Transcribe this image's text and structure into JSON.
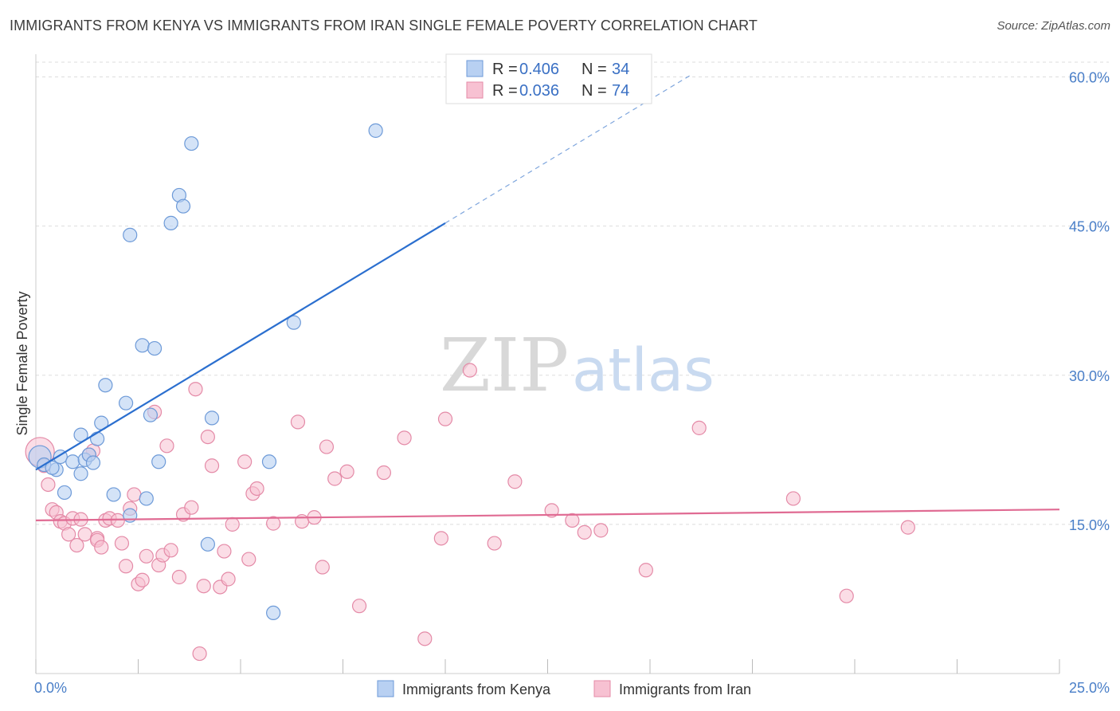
{
  "title": "IMMIGRANTS FROM KENYA VS IMMIGRANTS FROM IRAN SINGLE FEMALE POVERTY CORRELATION CHART",
  "source": "Source: ZipAtlas.com",
  "watermark": {
    "zip": "ZIP",
    "atlas": "atlas"
  },
  "legend": {
    "r_label": "R = ",
    "n_label": "N = ",
    "entries": [
      {
        "r": "0.406",
        "n": "34"
      },
      {
        "r": "0.036",
        "n": "74"
      }
    ]
  },
  "colors": {
    "kenya_fill": "#b8d0f2",
    "kenya_stroke": "#6d9ad8",
    "kenya_line": "#2b6fcf",
    "iran_fill": "#f7c1d2",
    "iran_stroke": "#e48aa7",
    "iran_line": "#e06b93",
    "axis_text": "#4a7fc8",
    "grid": "#dddddd"
  },
  "chart_data": {
    "type": "scatter",
    "title": "IMMIGRANTS FROM KENYA VS IMMIGRANTS FROM IRAN SINGLE FEMALE POVERTY CORRELATION CHART",
    "xlabel": "",
    "ylabel": "Single Female Poverty",
    "xlim": [
      0,
      25
    ],
    "ylim": [
      0,
      60
    ],
    "x_tick_labels": [
      "0.0%",
      "25.0%"
    ],
    "y_ticks": [
      15,
      30,
      45,
      60
    ],
    "y_tick_labels": [
      "15.0%",
      "30.0%",
      "45.0%",
      "60.0%"
    ],
    "grid": true,
    "legend_position": "top-center",
    "series": [
      {
        "name": "Immigrants from Kenya",
        "points": [
          [
            0.1,
            21.8
          ],
          [
            0.2,
            21.0
          ],
          [
            0.5,
            20.5
          ],
          [
            0.6,
            21.8
          ],
          [
            0.7,
            18.2
          ],
          [
            0.9,
            21.3
          ],
          [
            1.1,
            20.1
          ],
          [
            1.1,
            24.0
          ],
          [
            1.2,
            21.5
          ],
          [
            1.3,
            22.0
          ],
          [
            1.5,
            23.6
          ],
          [
            1.6,
            25.2
          ],
          [
            1.7,
            29.0
          ],
          [
            1.9,
            18.0
          ],
          [
            2.2,
            27.2
          ],
          [
            2.3,
            15.9
          ],
          [
            2.3,
            44.1
          ],
          [
            2.6,
            33.0
          ],
          [
            2.7,
            17.6
          ],
          [
            2.8,
            26.0
          ],
          [
            2.9,
            32.7
          ],
          [
            3.0,
            21.3
          ],
          [
            3.3,
            45.3
          ],
          [
            3.5,
            48.1
          ],
          [
            3.6,
            47.0
          ],
          [
            3.8,
            53.3
          ],
          [
            4.2,
            13.0
          ],
          [
            4.3,
            25.7
          ],
          [
            5.7,
            21.3
          ],
          [
            5.8,
            6.1
          ],
          [
            6.3,
            35.3
          ],
          [
            8.3,
            54.6
          ],
          [
            0.4,
            20.7
          ],
          [
            1.4,
            21.2
          ]
        ]
      },
      {
        "name": "Immigrants from Iran",
        "points": [
          [
            0.1,
            22.3
          ],
          [
            0.3,
            19.0
          ],
          [
            0.4,
            16.5
          ],
          [
            0.5,
            16.2
          ],
          [
            0.6,
            15.3
          ],
          [
            0.7,
            15.1
          ],
          [
            0.8,
            14.0
          ],
          [
            0.9,
            15.6
          ],
          [
            1.0,
            12.9
          ],
          [
            1.1,
            15.5
          ],
          [
            1.2,
            14.0
          ],
          [
            1.4,
            22.4
          ],
          [
            1.5,
            13.6
          ],
          [
            1.5,
            13.4
          ],
          [
            1.6,
            12.7
          ],
          [
            1.7,
            15.4
          ],
          [
            1.8,
            15.6
          ],
          [
            2.0,
            15.4
          ],
          [
            2.1,
            13.1
          ],
          [
            2.2,
            10.8
          ],
          [
            2.3,
            16.6
          ],
          [
            2.4,
            18.0
          ],
          [
            2.5,
            9.0
          ],
          [
            2.6,
            9.4
          ],
          [
            2.7,
            11.8
          ],
          [
            2.9,
            26.3
          ],
          [
            3.0,
            10.9
          ],
          [
            3.1,
            11.9
          ],
          [
            3.2,
            22.9
          ],
          [
            3.3,
            12.4
          ],
          [
            3.5,
            9.7
          ],
          [
            3.6,
            16.0
          ],
          [
            3.8,
            16.7
          ],
          [
            3.9,
            28.6
          ],
          [
            4.0,
            2.0
          ],
          [
            4.1,
            8.8
          ],
          [
            4.2,
            23.8
          ],
          [
            4.3,
            20.9
          ],
          [
            4.5,
            8.7
          ],
          [
            4.6,
            12.3
          ],
          [
            4.7,
            9.5
          ],
          [
            4.8,
            15.0
          ],
          [
            5.1,
            21.3
          ],
          [
            5.2,
            11.5
          ],
          [
            5.3,
            18.1
          ],
          [
            5.4,
            18.6
          ],
          [
            5.8,
            15.1
          ],
          [
            6.4,
            25.3
          ],
          [
            6.5,
            15.3
          ],
          [
            6.8,
            15.7
          ],
          [
            7.0,
            10.7
          ],
          [
            7.1,
            22.8
          ],
          [
            7.3,
            19.6
          ],
          [
            7.6,
            20.3
          ],
          [
            7.9,
            6.8
          ],
          [
            8.5,
            20.2
          ],
          [
            9.0,
            23.7
          ],
          [
            9.5,
            3.5
          ],
          [
            9.9,
            13.6
          ],
          [
            10.0,
            25.6
          ],
          [
            10.6,
            30.5
          ],
          [
            11.2,
            13.1
          ],
          [
            11.7,
            19.3
          ],
          [
            12.6,
            16.4
          ],
          [
            13.1,
            15.4
          ],
          [
            13.4,
            14.2
          ],
          [
            13.8,
            14.4
          ],
          [
            14.9,
            10.4
          ],
          [
            16.2,
            24.7
          ],
          [
            18.5,
            17.6
          ],
          [
            19.8,
            7.8
          ],
          [
            21.3,
            14.7
          ],
          [
            0.2,
            20.9
          ],
          [
            1.3,
            22.0
          ]
        ]
      }
    ],
    "trendlines": [
      {
        "series": "Immigrants from Kenya",
        "x0": 0.0,
        "y0": 20.5,
        "x1": 10.0,
        "y1": 45.3,
        "dashed_to_x": 16.0,
        "dashed_to_y": 60.2
      },
      {
        "series": "Immigrants from Iran",
        "x0": 0.0,
        "y0": 15.4,
        "x1": 25.0,
        "y1": 16.5
      }
    ]
  }
}
